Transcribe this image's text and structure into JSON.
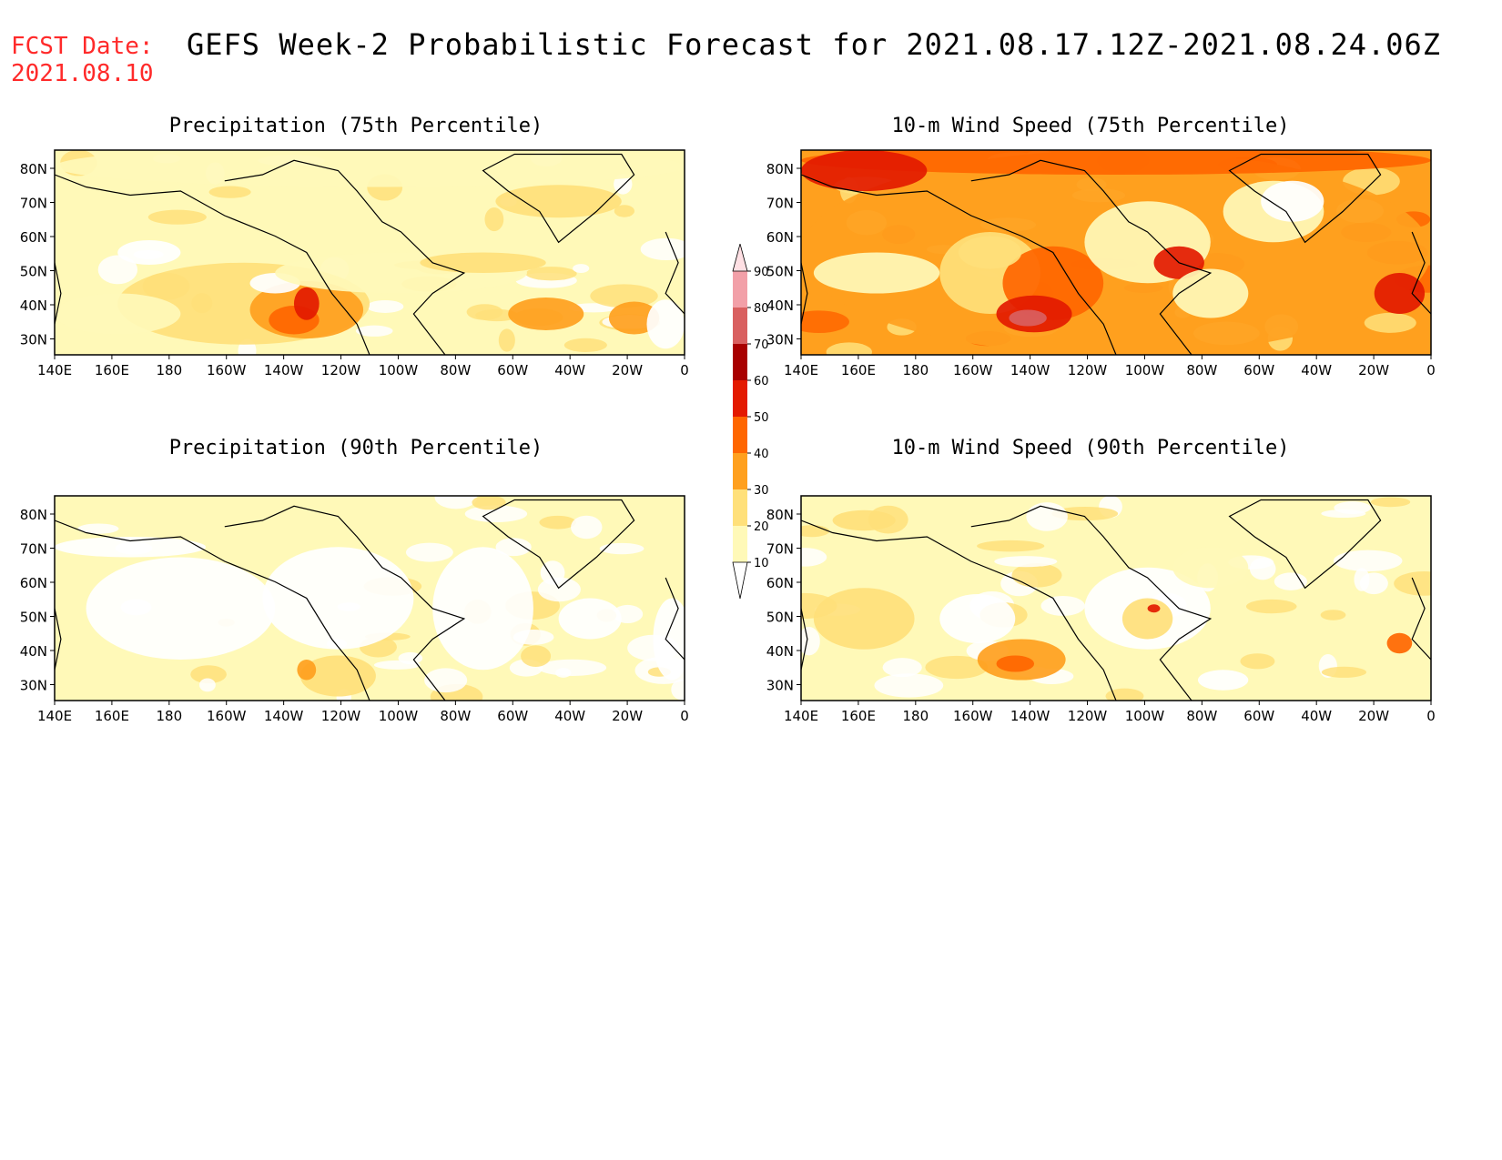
{
  "header": {
    "fcst_label": "FCST Date:",
    "fcst_date": "2021.08.10",
    "title": "GEFS Week-2 Probabilistic Forecast for 2021.08.17.12Z-2021.08.24.06Z"
  },
  "axes": {
    "lon_labels": [
      "140E",
      "160E",
      "180",
      "160W",
      "140W",
      "120W",
      "100W",
      "80W",
      "60W",
      "40W",
      "20W",
      "0"
    ],
    "lat_labels": [
      "80N",
      "70N",
      "60N",
      "50N",
      "40N",
      "30N"
    ]
  },
  "panels": [
    {
      "title": "Precipitation (75th Percentile)",
      "id": "precip75"
    },
    {
      "title": "10-m Wind Speed (75th Percentile)",
      "id": "wind75"
    },
    {
      "title": "Precipitation (90th Percentile)",
      "id": "precip90"
    },
    {
      "title": "10-m Wind Speed (90th Percentile)",
      "id": "wind90"
    }
  ],
  "colorbar": {
    "levels": [
      "10",
      "20",
      "30",
      "40",
      "50",
      "60",
      "70",
      "80",
      "90"
    ],
    "colors": [
      "#ffffff",
      "#fff9b8",
      "#ffe07a",
      "#ffa01e",
      "#ff6600",
      "#e31a00",
      "#a80000",
      "#d96060",
      "#f2a0a8",
      "#ffe0e4"
    ]
  }
}
